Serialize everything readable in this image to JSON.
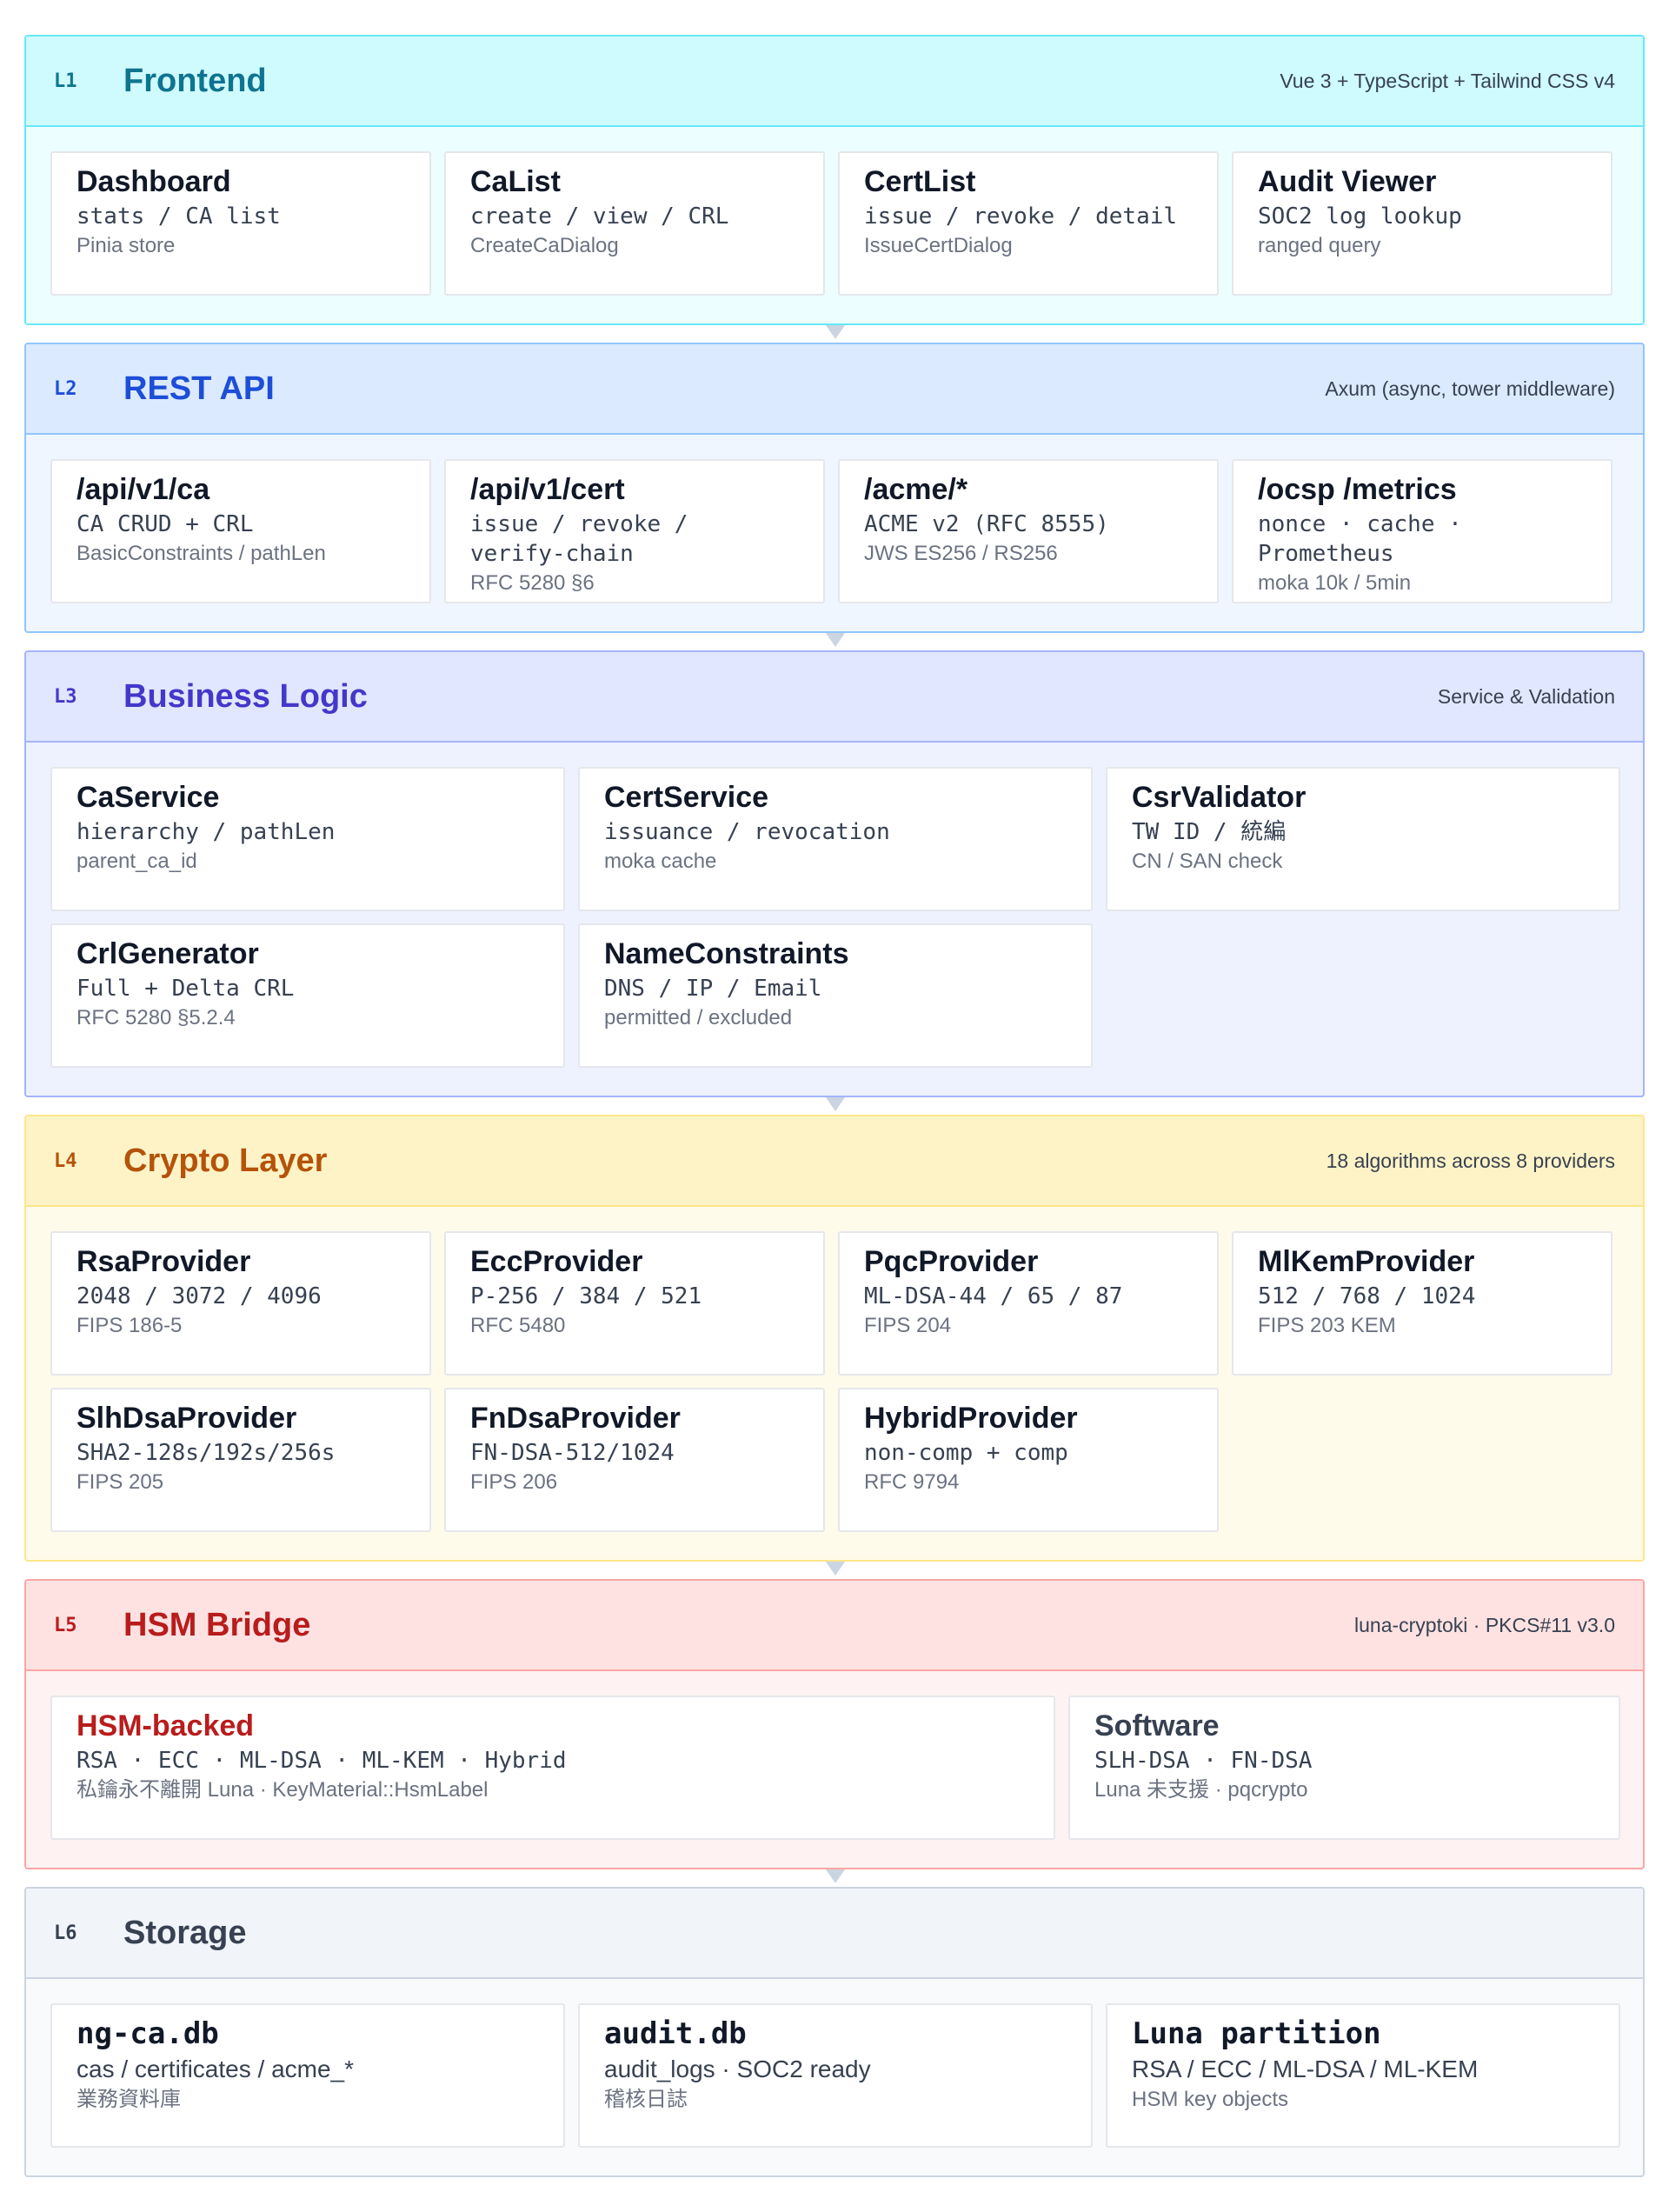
{
  "layers": [
    {
      "num": "L1",
      "title": "Frontend",
      "note": "Vue 3 + TypeScript + Tailwind CSS v4",
      "colors": {
        "border": "#67e8f9",
        "header_bg": "#cffafe",
        "body_bg": "#ecfeff",
        "title": "#0e7490"
      },
      "cards": [
        {
          "title": "Dashboard",
          "mono": "stats / CA list",
          "sub": "Pinia store"
        },
        {
          "title": "CaList",
          "mono": "create / view / CRL",
          "sub": "CreateCaDialog"
        },
        {
          "title": "CertList",
          "mono": "issue / revoke / detail",
          "sub": "IssueCertDialog"
        },
        {
          "title": "Audit Viewer",
          "mono": "SOC2 log lookup",
          "sub": "ranged query"
        }
      ]
    },
    {
      "num": "L2",
      "title": "REST API",
      "note": "Axum (async, tower middleware)",
      "colors": {
        "border": "#93c5fd",
        "header_bg": "#dbeafe",
        "body_bg": "#eff6ff",
        "title": "#1d4ed8"
      },
      "cards": [
        {
          "title": "/api/v1/ca",
          "mono": "CA CRUD + CRL",
          "sub": "BasicConstraints / pathLen"
        },
        {
          "title": "/api/v1/cert",
          "mono": "issue / revoke /\nverify-chain",
          "sub": "RFC 5280 §6"
        },
        {
          "title": "/acme/*",
          "mono": "ACME v2 (RFC 8555)",
          "sub": "JWS ES256 / RS256"
        },
        {
          "title": "/ocsp /metrics",
          "mono": "nonce · cache ·\nPrometheus",
          "sub": "moka 10k / 5min"
        }
      ]
    },
    {
      "num": "L3",
      "title": "Business Logic",
      "note": "Service & Validation",
      "colors": {
        "border": "#a5b4fc",
        "header_bg": "#e0e7ff",
        "body_bg": "#eef2ff",
        "title": "#4338ca"
      },
      "cards": [
        {
          "title": "CaService",
          "mono": "hierarchy / pathLen",
          "sub": "parent_ca_id"
        },
        {
          "title": "CertService",
          "mono": "issuance / revocation",
          "sub": "moka cache"
        },
        {
          "title": "CsrValidator",
          "mono": "TW ID / 統編",
          "sub": "CN / SAN check"
        },
        {
          "title": "CrlGenerator",
          "mono": "Full + Delta CRL",
          "sub": "RFC 5280 §5.2.4"
        },
        {
          "title": "NameConstraints",
          "mono": "DNS / IP / Email",
          "sub": "permitted / excluded"
        }
      ]
    },
    {
      "num": "L4",
      "title": "Crypto Layer",
      "note": "18 algorithms across 8 providers",
      "colors": {
        "border": "#fde68a",
        "header_bg": "#fef3c7",
        "body_bg": "#fffbeb",
        "title": "#b45309"
      },
      "cards": [
        {
          "title": "RsaProvider",
          "mono": "2048 / 3072 / 4096",
          "sub": "FIPS 186-5"
        },
        {
          "title": "EccProvider",
          "mono": "P-256 / 384 / 521",
          "sub": "RFC 5480"
        },
        {
          "title": "PqcProvider",
          "mono": "ML-DSA-44 / 65 / 87",
          "sub": "FIPS 204"
        },
        {
          "title": "MlKemProvider",
          "mono": "512 / 768 / 1024",
          "sub": "FIPS 203 KEM"
        },
        {
          "title": "SlhDsaProvider",
          "mono": "SHA2-128s/192s/256s",
          "sub": "FIPS 205"
        },
        {
          "title": "FnDsaProvider",
          "mono": "FN-DSA-512/1024",
          "sub": "FIPS 206"
        },
        {
          "title": "HybridProvider",
          "mono": "non-comp + comp",
          "sub": "RFC 9794"
        }
      ]
    },
    {
      "num": "L5",
      "title": "HSM Bridge",
      "note": "luna-cryptoki · PKCS#11 v3.0",
      "colors": {
        "border": "#fca5a5",
        "header_bg": "#fee2e2",
        "body_bg": "#fef2f2",
        "title": "#b91c1c"
      },
      "cards": [
        {
          "title": "HSM-backed",
          "mono": "RSA · ECC · ML-DSA · ML-KEM · Hybrid",
          "sub": "私鑰永不離開 Luna · KeyMaterial::HsmLabel"
        },
        {
          "title": "Software",
          "mono": "SLH-DSA · FN-DSA",
          "sub": "Luna 未支援 · pqcrypto"
        }
      ]
    },
    {
      "num": "L6",
      "title": "Storage",
      "note": "",
      "colors": {
        "border": "#cbd5e1",
        "header_bg": "#f1f5f9",
        "body_bg": "#f8fafc",
        "title": "#374151"
      },
      "cards": [
        {
          "title": "ng-ca.db",
          "line2": "cas / certificates / acme_*",
          "sub": "業務資料庫"
        },
        {
          "title": "audit.db",
          "line2": "audit_logs · SOC2 ready",
          "sub": "稽核日誌"
        },
        {
          "title": "Luna partition",
          "line2": "RSA / ECC / ML-DSA / ML-KEM",
          "sub": "HSM key objects"
        }
      ]
    }
  ]
}
